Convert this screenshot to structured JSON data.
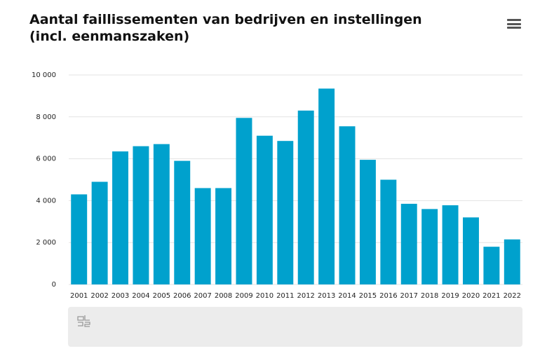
{
  "chart_data": {
    "type": "bar",
    "title": "Aantal faillissementen van bedrijven en instellingen (incl. eenmanszaken)",
    "categories": [
      "2001",
      "2002",
      "2003",
      "2004",
      "2005",
      "2006",
      "2007",
      "2008",
      "2009",
      "2010",
      "2011",
      "2012",
      "2013",
      "2014",
      "2015",
      "2016",
      "2017",
      "2018",
      "2019",
      "2020",
      "2021",
      "2022"
    ],
    "values": [
      4300,
      4900,
      6350,
      6600,
      6700,
      5900,
      4600,
      4600,
      7950,
      7100,
      6850,
      8300,
      9350,
      7550,
      5950,
      5000,
      3850,
      3600,
      3780,
      3200,
      1800,
      2150
    ],
    "color": "#00a1cd",
    "ylim": [
      0,
      10000
    ],
    "yticks": [
      0,
      {
        "value": 2000,
        "label": "2 000"
      },
      {
        "value": 4000,
        "label": "4 000"
      },
      {
        "value": 6000,
        "label": "6 000"
      },
      {
        "value": 8000,
        "label": "8 000"
      },
      {
        "value": 10000,
        "label": "10 000"
      }
    ],
    "grid": true
  }
}
